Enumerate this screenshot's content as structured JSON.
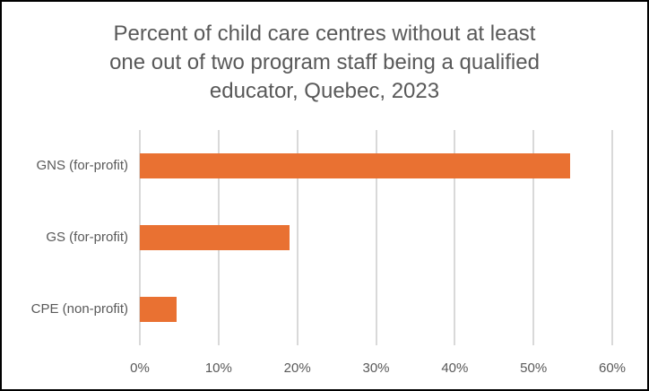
{
  "frame": {
    "background": "#FFFFFF",
    "border_color": "#000000"
  },
  "chart_data": {
    "type": "bar",
    "orientation": "horizontal",
    "title": "Percent of child care centres without at least one out of two program staff being a qualified educator, Quebec, 2023",
    "title_lines": [
      "Percent of child care centres without at least",
      "one out of two program staff being a qualified",
      "educator, Quebec, 2023"
    ],
    "categories": [
      "GNS (for-profit)",
      "GS (for-profit)",
      "CPE (non-profit)"
    ],
    "values": [
      54.7,
      19.0,
      4.7
    ],
    "value_unit": "%",
    "xlabel": "",
    "ylabel": "",
    "xlim": [
      0,
      60
    ],
    "x_ticks": [
      {
        "value": 0,
        "label": "0%"
      },
      {
        "value": 10,
        "label": "10%"
      },
      {
        "value": 20,
        "label": "20%"
      },
      {
        "value": 30,
        "label": "30%"
      },
      {
        "value": 40,
        "label": "40%"
      },
      {
        "value": 50,
        "label": "50%"
      },
      {
        "value": 60,
        "label": "60%"
      }
    ],
    "grid": true,
    "legend": false,
    "colors": {
      "bar": "#E97132",
      "gridline": "#D9D9D9",
      "text": "#595959"
    }
  }
}
